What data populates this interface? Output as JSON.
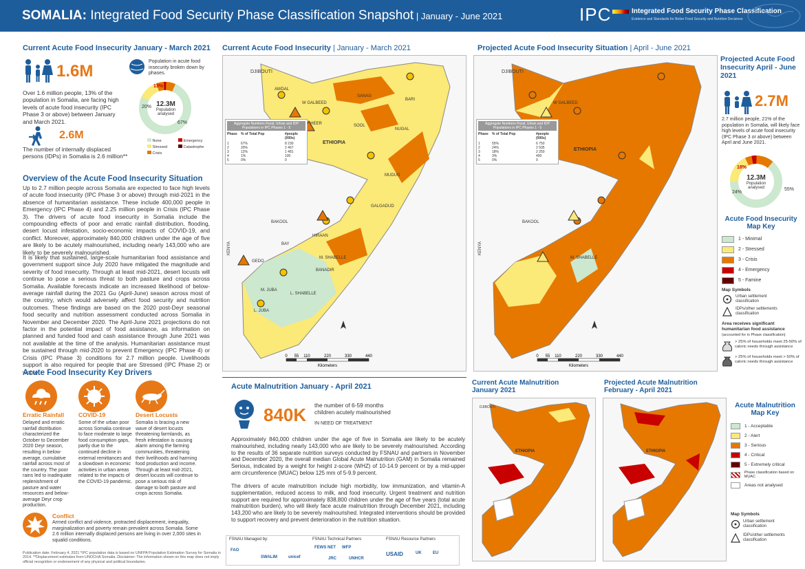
{
  "header": {
    "country": "SOMALIA:",
    "title": " Integrated Food Security Phase Classification Snapshot",
    "period": " | January - June 2021",
    "ipc_logo": "IPC",
    "ipc_name": "Integrated Food Security Phase Classification",
    "ipc_sub": "Evidence and Standards for Better Food Security and Nutrition Decisions"
  },
  "current_afi": {
    "title": "Current Acute Food Insecurity January - March 2021",
    "people": "1.6M",
    "people_text": "Over 1.6 million people, 13% of the population in Somalia, are facing high levels of acute food insecurity (IPC Phase 3 or above) between January and March 2021.",
    "idp": "2.6M",
    "idp_text": "The number of internally displaced persons (IDPs) in Somalia is 2.6 million**",
    "pie_title": "Population in acute food insecurity broken down by phases.",
    "pie_center": "12.3M",
    "pie_center_sub": "Population analysed",
    "pie_labels": [
      "13%",
      "20%",
      "67%"
    ],
    "pie_values": [
      67,
      20,
      12,
      1
    ],
    "pie_legend": [
      "None",
      "Emergency",
      "Stressed",
      "Catastrophe",
      "Crisis"
    ]
  },
  "overview": {
    "title": "Overview of the Acute Food Insecurity Situation",
    "p1": "Up to 2.7 million people across Somalia are expected to face high levels of acute food insecurity (IPC Phase 3 or above) through mid-2021 in the absence of humanitarian assistance. These include 400,000 people in Emergency (IPC Phase 4) and 2.25 million people in Crisis (IPC Phase 3). The drivers of acute food insecurity in Somalia include the compounding effects of poor and erratic rainfall distribution, flooding, desert locust infestation, socio-economic impacts of COVID-19, and conflict. Moreover, approximately 840,000 children under the age of five are likely to be acutely malnourished, including nearly 143,000 who are likely to be severely malnourished.",
    "p2": "It is likely that sustained, large-scale humanitarian food assistance and government support since July 2020 have mitigated the magnitude and severity of food insecurity. Through at least mid-2021, desert locusts will continue to pose a serious threat to both pasture and crops across Somalia. Available forecasts indicate an increased likelihood of below-average rainfall during the 2021 Gu (April-June) season across most of the country, which would adversely affect food security and nutrition outcomes. These findings are based on the 2020 post-Deyr seasonal food security and nutrition assessment conducted across Somalia in November and December 2020. The April-June 2021 projections do not factor in the potential impact of food assistance, as information on planned and funded food and cash assistance through June 2021 was not available at the time of the analysis. Humanitarian assistance must be sustained through mid-2020 to prevent Emergency (IPC Phase 4) or Crisis (IPC Phase 3) conditions for 2.7 million people. Livelihoods support is also required for people that are Stressed (IPC Phase 2) or worse."
  },
  "drivers": {
    "title": "Acute Food Insecurity Key Drivers",
    "items": [
      {
        "name": "Erratic Rainfall",
        "text": "Delayed and erratic rainfall distribution characterized the October to December 2020 Deyr season, resulting in below-average, cumulative rainfall across most of the country. The poor rains led to inadequate replenishment of pasture and water resources and below-average Deyr crop production."
      },
      {
        "name": "COVID-19",
        "text": "Some of the urban poor across Somalia continue to face moderate to large food consumption gaps, partly due to the continued decline in external remittances and a slowdown in economic activities in urban areas related to the impacts of the COVID-19 pandemic."
      },
      {
        "name": "Desert Locusts",
        "text": "Somalia is bracing a new wave of desert locusts threatening farmlands, as fresh infestation is causing alarm among the farming communities, threatening their livelihoods and harming food production and income. Through at least mid-2021, desert locusts will continue to pose a serious risk of damage to both pasture and crops across Somalia."
      }
    ],
    "conflict_name": "Conflict",
    "conflict_text": "Armed conflict and violence, protracted displacement, inequality, marginalization and poverty remain prevalent across Somalia. Some 2.6 million internally displaced persons are living in over 2,000 sites in squalid conditions."
  },
  "footnote": "Publication date: February 4, 2021 *IPC population data is based on UNFPA Population Estimation Survey for Somalia in 2014. **Displacement estimates from UNOCHA Somalia. Disclaimer: The information shown on this map does not imply official recognition or endorsement of any physical and political boundaries.",
  "maps": {
    "current_title": "Current Acute Food Insecurity",
    "current_period": " | January - March 2021",
    "projected_title": "Projected Acute Food Insecurity Situation",
    "projected_period": " | April - June 2021",
    "labels": [
      "DJIBOUTI",
      "AWDAL",
      "W GALBEED",
      "TOGDHEER",
      "SANAG",
      "BARI",
      "SOOL",
      "NUGAL",
      "ETHIOPIA",
      "MUDUG",
      "GALGADUD",
      "HIRAAN",
      "BAKOOL",
      "GEDO",
      "BAY",
      "M. SHABELLE",
      "BANADIR",
      "L. SHABELLE",
      "M. JUBA",
      "L. JUBA",
      "KENYA"
    ],
    "scale_ticks": [
      "0",
      "55",
      "110",
      "220",
      "330",
      "440"
    ],
    "scale_unit": "Kilometers",
    "table_head": [
      "Phase",
      "% of Total Pop",
      "#people (000s)"
    ],
    "table_current": [
      [
        "5",
        "0%",
        "0"
      ],
      [
        "4",
        "1%",
        "100"
      ],
      [
        "3",
        "12%",
        "1 481"
      ],
      [
        "2",
        "20%",
        "2 467"
      ],
      [
        "1",
        "67%",
        "8 230"
      ]
    ],
    "table_projected": [
      [
        "5",
        "0%",
        "0"
      ],
      [
        "4",
        "3%",
        "400"
      ],
      [
        "3",
        "18%",
        "2 250"
      ],
      [
        "2",
        "24%",
        "2 935"
      ],
      [
        "1",
        "55%",
        "6 750"
      ]
    ],
    "table_title": "Aggregate Numbers Rural, Urban and IDP Populations in IPC Phases 1 - 5"
  },
  "projected": {
    "title": "Projected Acute Food Insecurity April - June 2021",
    "people": "2.7M",
    "text": "2.7 million people, 21% of the population in Somalia, will likely face high levels of acute food insecurity (IPC Phase 3 or above) between April and June 2021.",
    "pie_center": "12.3M",
    "pie_center_sub": "Population analysed",
    "pie_labels": [
      "18%",
      "24%",
      "55%"
    ],
    "pie_values": [
      55,
      24,
      18,
      3
    ]
  },
  "afi_key": {
    "title": "Acute Food Insecurity Map Key",
    "phases": [
      {
        "label": "1 - Minimal",
        "color": "#cce8ce"
      },
      {
        "label": "2 - Stressed",
        "color": "#fbe978"
      },
      {
        "label": "3 - Crisis",
        "color": "#e67800"
      },
      {
        "label": "4 - Emergency",
        "color": "#c80000"
      },
      {
        "label": "5 - Famine",
        "color": "#640000"
      }
    ],
    "symbols_title": "Map Symbols",
    "sym1": "Urban settlement classification",
    "sym2": "IDPs/other settlements classification",
    "assist_title": "Area receives significant humanitarian food assistance",
    "assist_sub": "(accounted for in Phase classification)",
    "assist1": "> 25% of households meet 25-50% of caloric needs through assistance",
    "assist2": "> 25% of households meet > 50% of caloric needs through assistance"
  },
  "malnutrition": {
    "title": "Acute Malnutrition January - April 2021",
    "number": "840K",
    "label": "the number of 6-59 months children acutely malnourished",
    "need": "IN NEED OF TREATMENT",
    "p1": "Approximately 840,000 children under the age of five in Somalia are likely to be acutely malnourished, including nearly 143,000 who are likely to be severely malnourished. According to the results of 36 separate nutrition surveys conducted by FSNAU and partners in November and December 2020, the overall median Global Acute Malnutrition (GAM) in Somalia remained Serious, indicated by a weight for height z-score (WHZ) of 10-14.9 percent or by a mid-upper arm circumference (MUAC) below 125 mm of 5-9.9 percent.",
    "p2": "The drivers of acute malnutrition include high morbidity, low immunization, and vitamin-A supplementation, reduced access to milk, and food insecurity. Urgent treatment and nutrition support are required for approximately 838,800 children under the age of five years (total acute malnutrition burden), who will likely face acute malnutrition through December 2021, including 143,200 who are likely to be severely malnourished. Integrated interventions should be provided to support recovery and prevent deterioration in the nutrition situation.",
    "current_title": "Current Acute Malnutrition",
    "current_period": "January 2021",
    "projected_title": "Projected Acute Malnutrition",
    "projected_period": "February - April 2021"
  },
  "amn_key": {
    "title": "Acute Malnutrition Map Key",
    "phases": [
      {
        "label": "1 - Acceptable",
        "color": "#cce8ce"
      },
      {
        "label": "2 - Alert",
        "color": "#fbe978"
      },
      {
        "label": "3 - Serious",
        "color": "#e67800"
      },
      {
        "label": "4 - Critical",
        "color": "#c80000"
      },
      {
        "label": "5 - Extremely critical",
        "color": "#640000"
      }
    ],
    "muac": "Phase classification based on MUAC",
    "na": "Areas not analysed",
    "symbols_title": "Map Symbols",
    "sym1": "Urban settlement classification",
    "sym2": "IDPs/other settlements classification"
  },
  "partners": {
    "managed": "FSNAU Managed by:",
    "technical": "FSNAU Technical Partners",
    "resource": "FSNAU Resource Partners",
    "logos": [
      "FAO",
      "SWALIM",
      "unicef",
      "FEWS NET",
      "WFP",
      "JRC",
      "UNHCR",
      "USAID",
      "UK",
      "EU"
    ]
  }
}
